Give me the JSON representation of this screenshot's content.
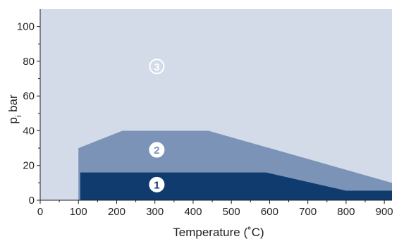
{
  "chart_data": {
    "type": "area",
    "xlabel": "Temperature (˚C)",
    "ylabel_main": "p",
    "ylabel_sub": "i",
    "ylabel_unit": " bar",
    "xlim": [
      0,
      920
    ],
    "ylim": [
      0,
      110
    ],
    "x_ticks": [
      0,
      100,
      200,
      300,
      400,
      500,
      600,
      700,
      800,
      900
    ],
    "y_ticks": [
      0,
      20,
      40,
      60,
      80,
      100
    ],
    "x_tick_labels": [
      "0",
      "100",
      "200",
      "300",
      "400",
      "500",
      "600",
      "700",
      "800",
      "900"
    ],
    "y_tick_labels": [
      "0",
      "20",
      "40",
      "60",
      "80",
      "100"
    ],
    "regions": [
      {
        "id": "3",
        "label": "3",
        "color": "#d3dbe8",
        "boundary": [
          [
            0,
            0
          ],
          [
            0,
            110
          ],
          [
            920,
            110
          ],
          [
            920,
            0
          ]
        ],
        "label_pos": [
          305,
          77
        ]
      },
      {
        "id": "2",
        "label": "2",
        "color": "#7a93b7",
        "boundary": [
          [
            100,
            0
          ],
          [
            100,
            30
          ],
          [
            215,
            40
          ],
          [
            440,
            40
          ],
          [
            920,
            10
          ],
          [
            920,
            0
          ]
        ],
        "label_pos": [
          305,
          29
        ]
      },
      {
        "id": "1",
        "label": "1",
        "color": "#0f3b6e",
        "boundary": [
          [
            105,
            0
          ],
          [
            105,
            16
          ],
          [
            590,
            16
          ],
          [
            800,
            5.5
          ],
          [
            920,
            5.5
          ],
          [
            920,
            0
          ]
        ],
        "label_pos": [
          305,
          9
        ]
      }
    ]
  }
}
